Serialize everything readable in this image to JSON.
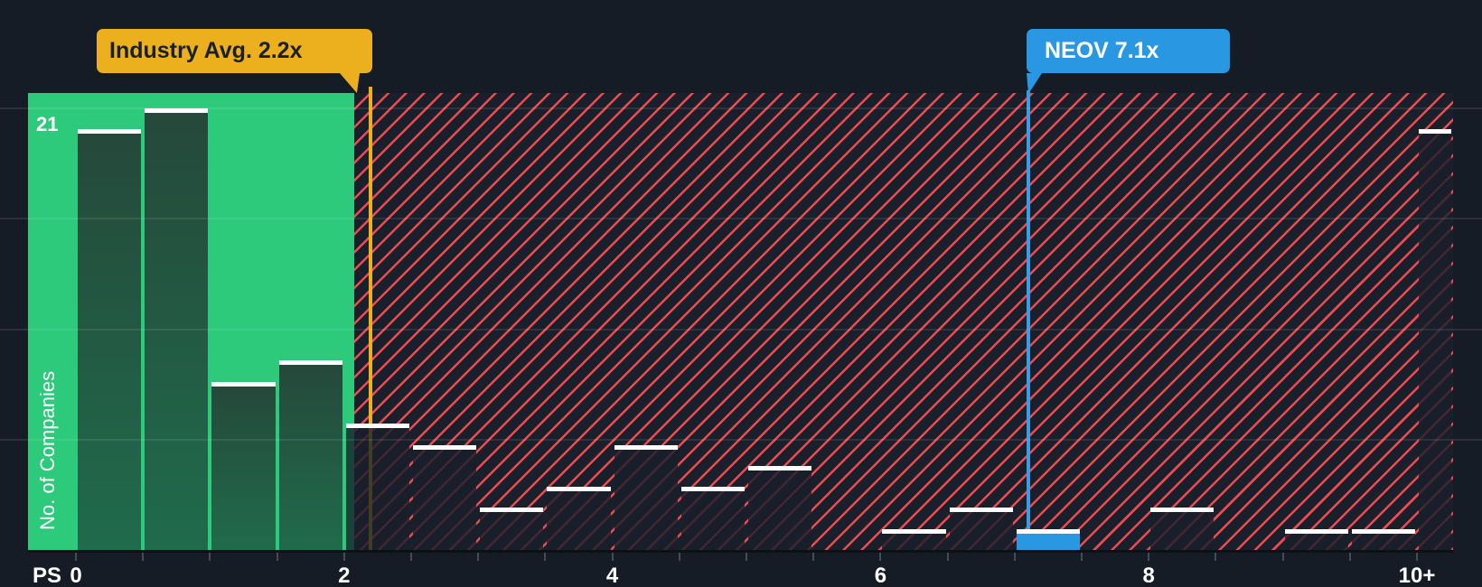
{
  "chart_data": {
    "type": "bar",
    "title": "",
    "xlabel": "PS",
    "ylabel": "No. of Companies",
    "y_max_label": "21",
    "bin_width": 0.5,
    "bins_start": [
      0,
      0.5,
      1,
      1.5,
      2,
      2.5,
      3,
      3.5,
      4,
      4.5,
      5,
      5.5,
      6,
      6.5,
      7,
      7.5,
      8,
      8.5,
      9,
      9.5,
      10
    ],
    "values": [
      20,
      21,
      8,
      9,
      6,
      5,
      2,
      3,
      5,
      3,
      4,
      0,
      1,
      2,
      1,
      0,
      2,
      0,
      1,
      1,
      20
    ],
    "ylim": [
      0,
      21
    ],
    "xlim": [
      0,
      10.27
    ],
    "grid": true,
    "grid_values": [
      5.25,
      10.5,
      15.75,
      21
    ],
    "x_tick_step": 0.5,
    "x_tick_labels": {
      "0": "0",
      "2": "2",
      "4": "4",
      "6": "6",
      "8": "8",
      "10": "10+"
    },
    "industry_avg": {
      "label": "Industry Avg. 2.2x",
      "value": 2.2
    },
    "company": {
      "label": "NEOV 7.1x",
      "value": 7.1,
      "bin_start": 7
    },
    "colors": {
      "background": "#161c26",
      "below_avg_zone": "#2dca7c",
      "above_avg_hatch_line": "#ee4b50",
      "above_avg_hatch_bg": "#1a202b",
      "green_bar_top": "#25493b",
      "green_bar_bottom": "#206b4c",
      "dark_bar": "rgba(24,30,42,0.8)",
      "bar_cap": "#ffffff",
      "industry_accent": "#ecb01e",
      "company_accent": "#2997e2"
    }
  }
}
